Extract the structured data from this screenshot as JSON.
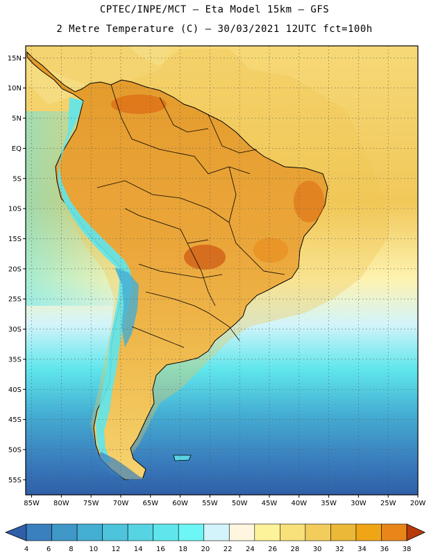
{
  "title": {
    "line1": "CPTEC/INPE/MCT –  Eta Model 15km – GFS",
    "line2": "2 Metre Temperature (C) – 30/03/2021 12UTC fct=100h"
  },
  "map": {
    "lat_labels": [
      "15N",
      "10N",
      "5N",
      "EQ",
      "5S",
      "10S",
      "15S",
      "20S",
      "25S",
      "30S",
      "35S",
      "40S",
      "45S",
      "50S",
      "55S"
    ],
    "lon_labels": [
      "85W",
      "80W",
      "75W",
      "70W",
      "65W",
      "60W",
      "55W",
      "50W",
      "45W",
      "40W",
      "35W",
      "30W",
      "25W",
      "20W"
    ]
  },
  "colorbar": {
    "labels": [
      "4",
      "6",
      "8",
      "10",
      "12",
      "14",
      "16",
      "18",
      "20",
      "22",
      "24",
      "26",
      "28",
      "30",
      "32",
      "34",
      "36",
      "38"
    ],
    "colors": [
      "#2f5fa8",
      "#3a7fbe",
      "#3f98c8",
      "#45aed3",
      "#4ec3dc",
      "#56d4e3",
      "#5fe6ec",
      "#6ef5f5",
      "#d3f4fa",
      "#fff6e0",
      "#fdf39a",
      "#f8e07a",
      "#f3cd5c",
      "#ecb838",
      "#efa516",
      "#e8861a",
      "#dd6912",
      "#c8470b",
      "#b83a0a"
    ]
  },
  "palette": {
    "ocean_cold": "#2f5fa8",
    "ocean_mid": "#45aed3",
    "ocean_warm": "#f3cd5c",
    "land_hot": "#e8861a",
    "andes": "#5fe6ec"
  }
}
